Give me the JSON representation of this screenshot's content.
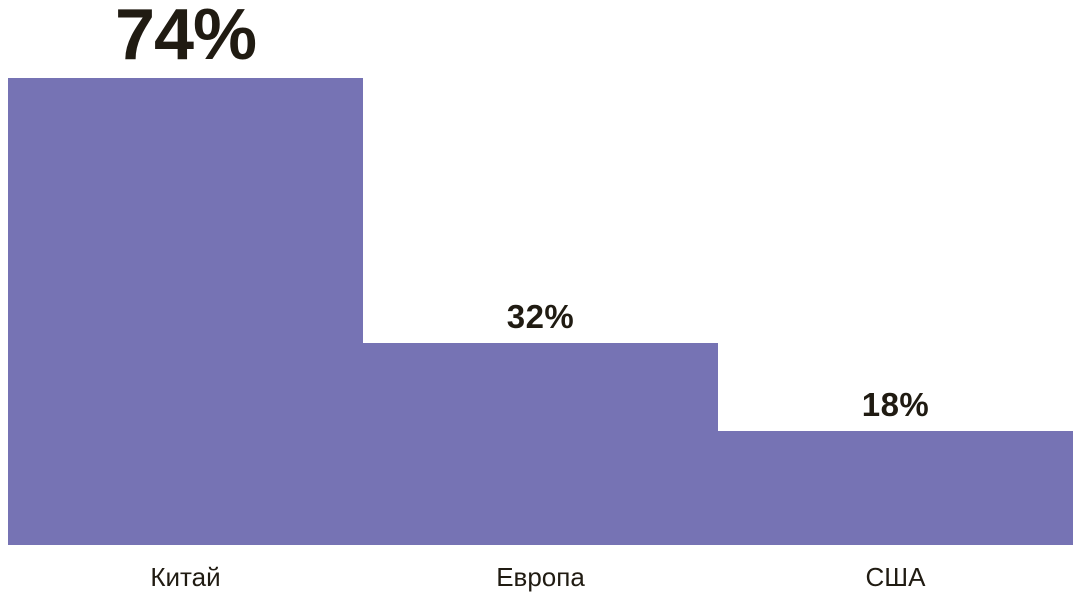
{
  "chart_data": {
    "type": "bar",
    "categories": [
      "Китай",
      "Европа",
      "США"
    ],
    "values": [
      74,
      32,
      18
    ],
    "value_labels": [
      "74%",
      "32%",
      "18%"
    ],
    "title": "",
    "xlabel": "",
    "ylabel": "",
    "ylim": [
      0,
      86
    ],
    "grid": false,
    "legend_position": "none",
    "bars_flush": true,
    "emphasized_index": 0,
    "bar_color": "#7673B4",
    "text_color": "#201B12",
    "background_color": "#FFFFFF"
  }
}
